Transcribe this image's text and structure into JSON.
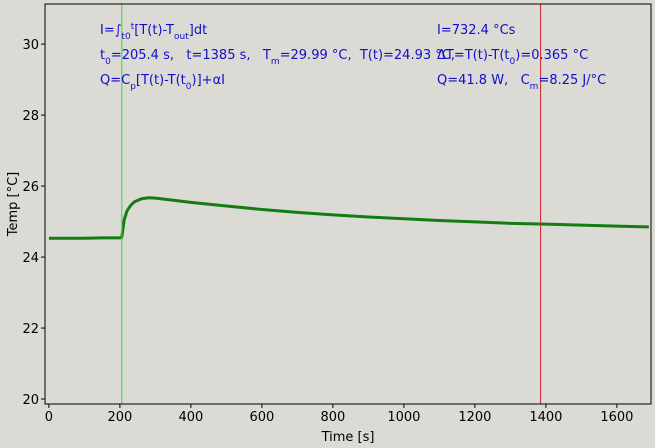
{
  "chart_data": {
    "type": "line",
    "xlabel": "Time [s]",
    "ylabel": "Temp [°C]",
    "xlim": [
      -11,
      1696
    ],
    "ylim": [
      19.86,
      31.13
    ],
    "xticks": [
      0,
      200,
      400,
      600,
      800,
      1000,
      1200,
      1400,
      1600
    ],
    "yticks": [
      20,
      22,
      24,
      26,
      28,
      30
    ],
    "x": [
      0,
      50,
      100,
      150,
      200,
      205,
      208,
      212,
      220,
      230,
      240,
      260,
      280,
      300,
      350,
      400,
      500,
      600,
      700,
      800,
      900,
      1000,
      1100,
      1200,
      1300,
      1385,
      1500,
      1600,
      1690
    ],
    "series": [
      {
        "color": "#137d13",
        "values": [
          24.53,
          24.53,
          24.53,
          24.54,
          24.54,
          24.55,
          24.75,
          25.05,
          25.3,
          25.45,
          25.55,
          25.64,
          25.67,
          25.66,
          25.6,
          25.54,
          25.44,
          25.34,
          25.26,
          25.19,
          25.13,
          25.08,
          25.03,
          24.99,
          24.95,
          24.93,
          24.9,
          24.87,
          24.85
        ]
      }
    ],
    "vlines": [
      {
        "x": 205.4,
        "color": "#33dd33"
      },
      {
        "x": 1385,
        "color": "#cc2222"
      }
    ],
    "annotations": [
      [
        {
          "text": "I=∫"
        },
        {
          "text": "t0",
          "shift": "sub"
        },
        {
          "text": "t",
          "shift": "super"
        },
        {
          "text": "[T(t)-T"
        },
        {
          "text": "out",
          "shift": "sub"
        },
        {
          "text": "]dt"
        }
      ],
      [
        {
          "text": "t"
        },
        {
          "text": "0",
          "shift": "sub"
        },
        {
          "text": "=205.4 s,   t=1385 s,   T"
        },
        {
          "text": "m",
          "shift": "sub"
        },
        {
          "text": "=29.99 °C,  T(t)=24.93 °C,"
        }
      ],
      [
        {
          "text": "Q=C"
        },
        {
          "text": "p",
          "shift": "sub"
        },
        {
          "text": "[T(t)-T(t"
        },
        {
          "text": "0",
          "shift": "sub"
        },
        {
          "text": ")]+αI"
        }
      ],
      [
        {
          "text": "I=732.4 °Cs"
        }
      ],
      [
        {
          "text": "ΔT=T(t)-T(t"
        },
        {
          "text": "0",
          "shift": "sub"
        },
        {
          "text": ")=0.365 °C"
        }
      ],
      [
        {
          "text": "Q=41.8 W,   C"
        },
        {
          "text": "m",
          "shift": "sub"
        },
        {
          "text": "=8.25 J/°C"
        }
      ]
    ]
  }
}
